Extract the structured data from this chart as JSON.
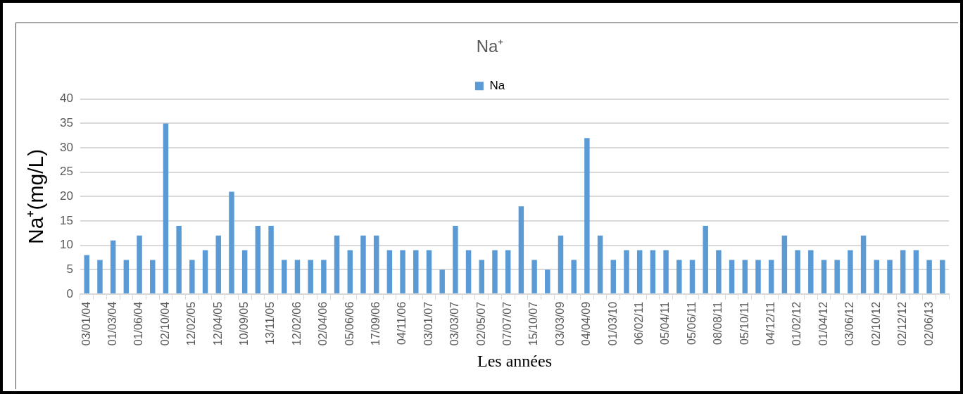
{
  "chart_data": {
    "type": "bar",
    "title": "Na⁺",
    "xlabel": "Les années",
    "ylabel": "Na⁺(mg/L)",
    "categories": [
      "03/01/04",
      null,
      "01/03/04",
      null,
      "01/06/04",
      null,
      "02/10/04",
      null,
      "12/02/05",
      null,
      "12/04/05",
      null,
      "10/09/05",
      null,
      "13/11/05",
      null,
      "12/02/06",
      null,
      "02/04/06",
      null,
      "05/06/06",
      null,
      "17/09/06",
      null,
      "04/11/06",
      null,
      "03/01/07",
      null,
      "03/03/07",
      null,
      "02/05/07",
      null,
      "07/07/07",
      null,
      "15/10/07",
      null,
      "03/03/09",
      null,
      "04/04/09",
      null,
      "01/03/10",
      null,
      "06/02/11",
      null,
      "05/04/11",
      null,
      "05/06/11",
      null,
      "08/08/11",
      null,
      "05/10/11",
      null,
      "04/12/11",
      null,
      "01/02/12",
      null,
      "01/04/12",
      null,
      "03/06/12",
      null,
      "02/10/12",
      null,
      "02/12/12",
      null,
      "02/06/13",
      null
    ],
    "series": [
      {
        "name": "Na",
        "color": "#5b9bd5",
        "values": [
          8,
          7,
          11,
          7,
          12,
          7,
          35,
          14,
          7,
          9,
          12,
          21,
          9,
          14,
          14,
          7,
          7,
          7,
          7,
          12,
          9,
          12,
          12,
          9,
          9,
          9,
          9,
          5,
          14,
          9,
          7,
          9,
          9,
          18,
          7,
          5,
          12,
          7,
          32,
          12,
          7,
          9,
          9,
          9,
          9,
          7,
          7,
          14,
          9,
          7,
          7,
          7,
          7,
          12,
          9,
          9,
          7,
          7,
          9,
          12,
          7,
          7,
          9,
          9,
          7,
          7
        ]
      }
    ],
    "ylim": [
      0,
      40
    ],
    "yticks": [
      0,
      5,
      10,
      15,
      20,
      25,
      30,
      35,
      40
    ],
    "grid": "y",
    "legend": "top"
  }
}
